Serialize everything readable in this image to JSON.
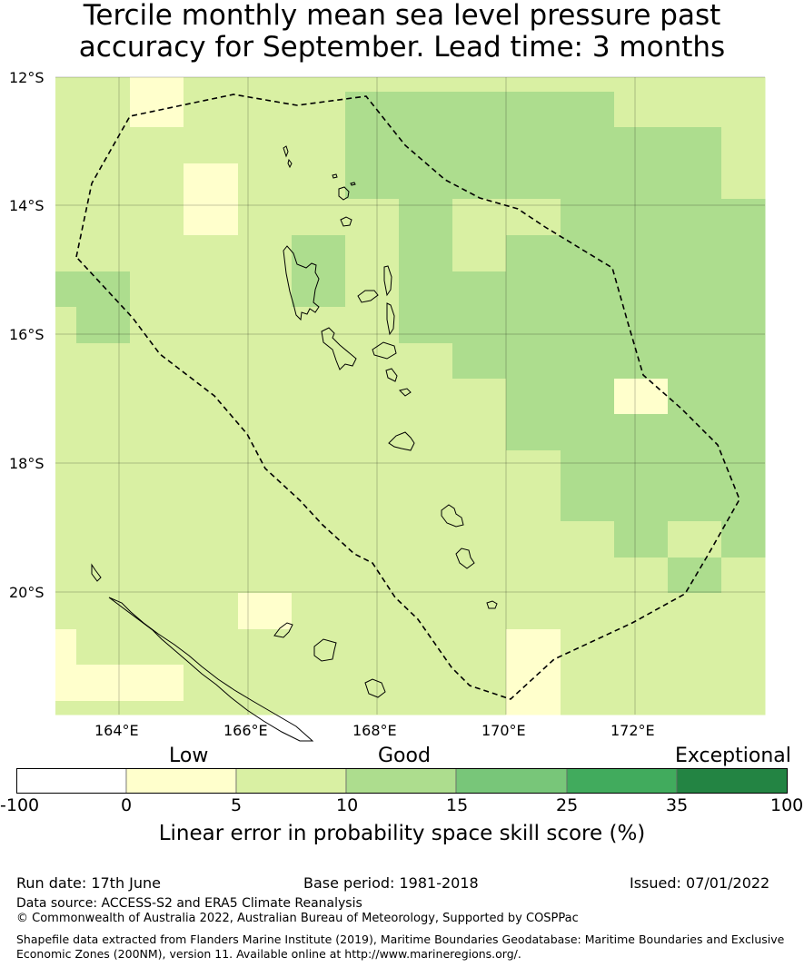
{
  "title": {
    "line1": "Tercile monthly mean sea level pressure past",
    "line2": "accuracy for September. Lead time: 3 months"
  },
  "map": {
    "lat_labels": [
      "12°S",
      "14°S",
      "16°S",
      "18°S",
      "20°S"
    ],
    "lon_labels": [
      "164°E",
      "166°E",
      "168°E",
      "170°E",
      "172°E"
    ]
  },
  "colorbar": {
    "categories": [
      "Low",
      "Good",
      "Exceptional"
    ],
    "ticks": [
      "-100",
      "0",
      "5",
      "10",
      "15",
      "25",
      "35",
      "100"
    ],
    "colors": [
      "#ffffff",
      "#ffffcc",
      "#d9f0a3",
      "#addd8e",
      "#78c679",
      "#41ab5d",
      "#238443"
    ],
    "caption": "Linear error in probability space skill score (%)"
  },
  "footer": {
    "run_date": "Run date: 17th June",
    "base_period": "Base period: 1981-2018",
    "issued": "Issued: 07/01/2022",
    "data_source": "Data source: ACCESS-S2 and ERA5 Climate Reanalysis",
    "copyright": "© Commonwealth of Australia 2022, Australian Bureau of Meteorology, Supported by COSPPac",
    "shapefile_line1": "Shapefile data extracted from Flanders Marine Institute (2019), Maritime Boundaries Geodatabase: Maritime Boundaries and Exclusive",
    "shapefile_line2": "Economic Zones (200NM), version 11. Available online at http://www.marineregions.org/."
  }
}
